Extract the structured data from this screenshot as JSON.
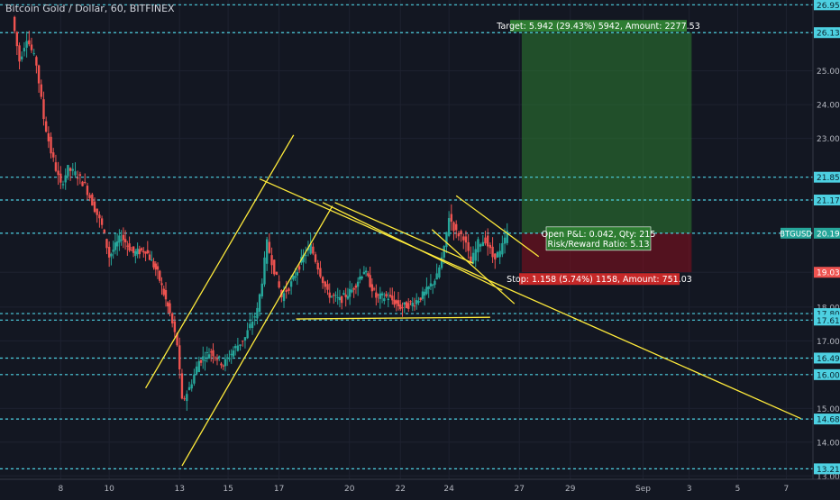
{
  "chart_title": "Bitcoin Gold / Dollar, 60, BITFINEX",
  "chart_data": {
    "type": "candlestick",
    "symbol": "BTGUSD",
    "y_ticks": [
      "26.958",
      "26.133",
      "25.000",
      "24.000",
      "23.000",
      "21.850",
      "21.174",
      "20.191",
      "19.033",
      "18.000",
      "17.809",
      "17.616",
      "17.000",
      "16.491",
      "16.001",
      "15.000",
      "14.686",
      "14.000",
      "13.210",
      "13.000"
    ],
    "x_ticks": [
      "8",
      "10",
      "13",
      "15",
      "17",
      "20",
      "22",
      "24",
      "27",
      "29",
      "Sep",
      "3",
      "5",
      "7"
    ],
    "horizontal_levels": [
      26.958,
      26.133,
      21.85,
      21.174,
      20.191,
      17.809,
      17.616,
      16.491,
      16.001,
      14.686,
      13.21
    ],
    "last_price": "20.191",
    "price_badges": [
      {
        "text": "26.958",
        "color": "#4dd0e1"
      },
      {
        "text": "26.133",
        "color": "#4dd0e1"
      },
      {
        "text": "21.850",
        "color": "#4dd0e1"
      },
      {
        "text": "21.174",
        "color": "#4dd0e1"
      },
      {
        "text": "20.191",
        "color": "#26a69a"
      },
      {
        "text": "19.033",
        "color": "#ef5350"
      },
      {
        "text": "17.809",
        "color": "#4dd0e1"
      },
      {
        "text": "17.616",
        "color": "#4dd0e1"
      },
      {
        "text": "16.491",
        "color": "#4dd0e1"
      },
      {
        "text": "16.001",
        "color": "#4dd0e1"
      },
      {
        "text": "14.686",
        "color": "#4dd0e1"
      },
      {
        "text": "13.210",
        "color": "#4dd0e1"
      }
    ],
    "position": {
      "target_label": "Target: 5.942 (29.43%) 5942, Amount: 2277.53",
      "stop_label": "Stop: 1.158 (5.74%) 1158, Amount: 751.03",
      "open_pnl_label": "Open P&L: 0.042, Qty: 215",
      "rr_label": "Risk/Reward Ratio: 5.13",
      "entry": 20.191,
      "target": 26.133,
      "stop": 19.033
    },
    "price_points": [
      [
        0,
        26.6
      ],
      [
        0.3,
        25.3
      ],
      [
        0.6,
        26.0
      ],
      [
        1.0,
        25.2
      ],
      [
        1.3,
        23.6
      ],
      [
        1.6,
        22.6
      ],
      [
        2.0,
        21.6
      ],
      [
        2.3,
        22.1
      ],
      [
        2.7,
        21.9
      ],
      [
        3.0,
        21.6
      ],
      [
        3.3,
        21.1
      ],
      [
        3.7,
        20.4
      ],
      [
        4.0,
        19.5
      ],
      [
        4.5,
        20.1
      ],
      [
        5.0,
        19.6
      ],
      [
        5.5,
        19.7
      ],
      [
        6.0,
        19.0
      ],
      [
        6.5,
        17.8
      ],
      [
        6.8,
        16.9
      ],
      [
        7.0,
        15.2
      ],
      [
        7.3,
        15.6
      ],
      [
        7.7,
        16.4
      ],
      [
        8.2,
        16.7
      ],
      [
        8.7,
        16.3
      ],
      [
        9.2,
        16.8
      ],
      [
        9.6,
        17.1
      ],
      [
        9.9,
        17.6
      ],
      [
        10.1,
        17.9
      ],
      [
        10.3,
        18.8
      ],
      [
        10.5,
        19.9
      ],
      [
        10.8,
        19.1
      ],
      [
        11.1,
        18.3
      ],
      [
        11.5,
        18.7
      ],
      [
        12.0,
        19.5
      ],
      [
        12.3,
        19.8
      ],
      [
        12.6,
        19.2
      ],
      [
        13.0,
        18.4
      ],
      [
        13.5,
        18.2
      ],
      [
        14.0,
        18.5
      ],
      [
        14.5,
        19.1
      ],
      [
        15.0,
        18.3
      ],
      [
        15.5,
        18.3
      ],
      [
        16.0,
        18.0
      ],
      [
        16.5,
        18.1
      ],
      [
        17.0,
        18.4
      ],
      [
        17.5,
        18.9
      ],
      [
        17.8,
        19.7
      ],
      [
        18.0,
        20.7
      ],
      [
        18.3,
        20.2
      ],
      [
        18.6,
        20.1
      ],
      [
        18.9,
        19.3
      ],
      [
        19.2,
        19.9
      ],
      [
        19.5,
        20.0
      ],
      [
        19.8,
        19.5
      ],
      [
        20.1,
        19.6
      ],
      [
        20.4,
        20.2
      ]
    ],
    "trendlines": [
      {
        "from": [
          5.5,
          15.6
        ],
        "to": [
          11.6,
          23.1
        ]
      },
      {
        "from": [
          7.0,
          13.3
        ],
        "to": [
          13.2,
          21.0
        ]
      },
      {
        "from": [
          10.2,
          21.8
        ],
        "to": [
          32.5,
          14.7
        ]
      },
      {
        "from": [
          12.8,
          21.1
        ],
        "to": [
          20.2,
          18.5
        ]
      },
      {
        "from": [
          13.3,
          21.1
        ],
        "to": [
          19.0,
          19.3
        ]
      },
      {
        "from": [
          11.7,
          17.65
        ],
        "to": [
          19.7,
          17.7
        ]
      },
      {
        "from": [
          18.3,
          21.3
        ],
        "to": [
          21.7,
          19.5
        ]
      },
      {
        "from": [
          17.3,
          20.3
        ],
        "to": [
          20.7,
          18.1
        ]
      }
    ],
    "y_range": [
      12.9,
      27.1
    ],
    "x_range": [
      -0.5,
      33.0
    ]
  }
}
